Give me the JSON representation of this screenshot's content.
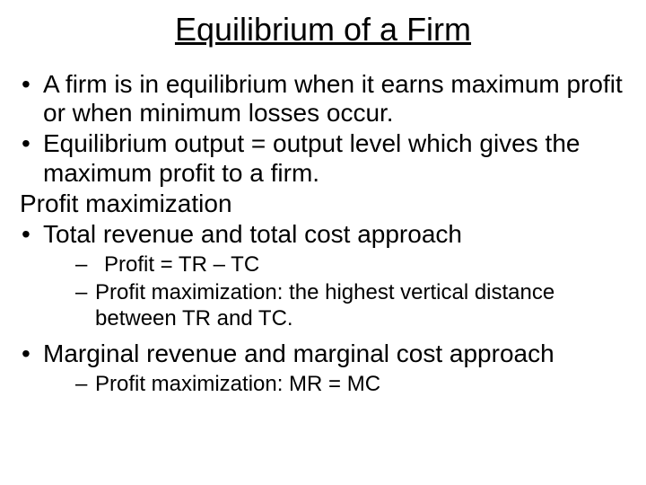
{
  "title": "Equilibrium of a Firm",
  "items": {
    "b1": "A firm is in equilibrium when it earns maximum profit or when minimum losses occur.",
    "b2": "Equilibrium output = output level which gives the maximum profit to a firm.",
    "p1": "Profit maximization",
    "b3": "Total revenue and total cost approach",
    "s1": " Profit = TR – TC",
    "s2": "Profit maximization: the highest vertical distance between TR and TC.",
    "b4": "Marginal revenue and marginal cost approach",
    "s3": "Profit maximization: MR = MC"
  },
  "colors": {
    "background": "#ffffff",
    "text": "#000000"
  },
  "typography": {
    "title_fontsize": 36,
    "body_fontsize": 28,
    "sub_fontsize": 24,
    "font_family": "Arial"
  }
}
